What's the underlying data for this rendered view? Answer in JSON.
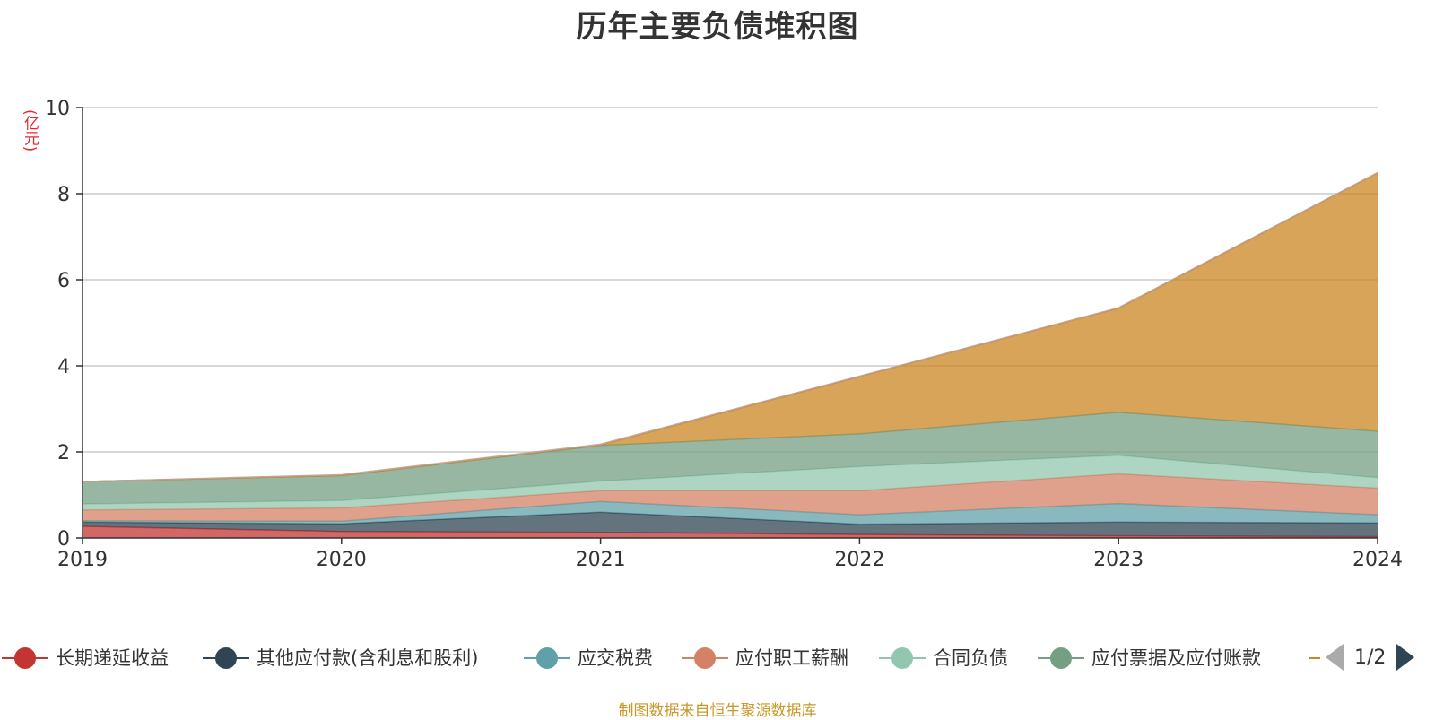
{
  "title": "历年主要负债堆积图",
  "unit": "(亿元)",
  "source_text": "制图数据来自恒生聚源数据库",
  "legend_pager": {
    "page_text": "1/2"
  },
  "legend_items": [
    {
      "name": "长期递延收益",
      "color": "#c23531"
    },
    {
      "name": "其他应付款(含利息和股利)",
      "color": "#2f4554"
    },
    {
      "name": "应交税费",
      "color": "#61a0a8"
    },
    {
      "name": "应付职工薪酬",
      "color": "#d48265"
    },
    {
      "name": "合同负债",
      "color": "#91c7ae"
    },
    {
      "name": "应付票据及应付账款",
      "color": "#749f83"
    },
    {
      "name": "",
      "color": "#ca8622"
    }
  ],
  "chart_data": {
    "type": "area",
    "stacked": true,
    "categories": [
      "2019",
      "2020",
      "2021",
      "2022",
      "2023",
      "2024"
    ],
    "ylim": [
      0,
      10
    ],
    "yticks": [
      "0",
      "2",
      "4",
      "6",
      "8",
      "10"
    ],
    "grid": true,
    "series": [
      {
        "name": "长期递延收益",
        "color": "#c23531",
        "values": [
          0.27,
          0.15,
          0.13,
          0.08,
          0.05,
          0.03
        ]
      },
      {
        "name": "其他应付款(含利息和股利)",
        "color": "#2f4554",
        "values": [
          0.1,
          0.18,
          0.47,
          0.24,
          0.32,
          0.32
        ]
      },
      {
        "name": "应交税费",
        "color": "#61a0a8",
        "values": [
          0.03,
          0.06,
          0.25,
          0.22,
          0.43,
          0.19
        ]
      },
      {
        "name": "应付职工薪酬",
        "color": "#d48265",
        "values": [
          0.25,
          0.31,
          0.25,
          0.56,
          0.69,
          0.62
        ]
      },
      {
        "name": "合同负债",
        "color": "#91c7ae",
        "values": [
          0.14,
          0.17,
          0.22,
          0.56,
          0.43,
          0.24
        ]
      },
      {
        "name": "应付票据及应付账款",
        "color": "#749f83",
        "values": [
          0.52,
          0.58,
          0.83,
          0.76,
          1.0,
          1.08
        ]
      },
      {
        "name": "",
        "color": "#ca8622",
        "values": [
          0.0,
          0.0,
          0.01,
          1.33,
          2.42,
          6.0
        ]
      },
      {
        "name": "",
        "color": "#bda29a",
        "values": [
          0.0,
          0.02,
          0.02,
          0.01,
          0.01,
          0.01
        ]
      }
    ]
  }
}
